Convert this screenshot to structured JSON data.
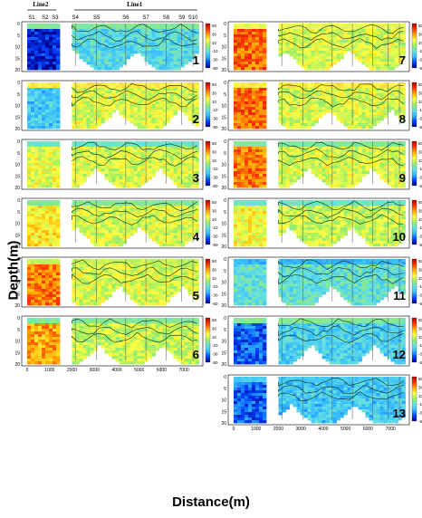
{
  "header": {
    "line1_label": "Line1",
    "line2_label": "Line2",
    "stations": [
      "S1",
      "S2",
      "S3",
      "S4",
      "S5",
      "S6",
      "S7",
      "S8",
      "S9",
      "S10"
    ]
  },
  "axes": {
    "ylabel": "Depth(m)",
    "xlabel": "Distance(m)",
    "y_ticks": [
      "0",
      "5",
      "10",
      "15",
      "20"
    ],
    "x_ticks_left": [
      "0",
      "1000"
    ],
    "x_ticks_right": [
      "2000",
      "3000",
      "4000",
      "5000",
      "6000",
      "7000"
    ],
    "colorbar_ticks": [
      "50",
      "30",
      "10",
      "-10",
      "-30",
      "-50"
    ]
  },
  "colors": {
    "scale": [
      "#00008b",
      "#0044ff",
      "#33bbff",
      "#66e0e0",
      "#99ee66",
      "#ffff44",
      "#ffaa00",
      "#ff3300",
      "#b00000"
    ]
  },
  "chart_data": {
    "type": "heatmap",
    "xlabel": "Distance(m)",
    "ylabel": "Depth(m)",
    "xlim": [
      0,
      7600
    ],
    "ylim": [
      20,
      0
    ],
    "colorbar_range": [
      -50,
      50
    ],
    "colorbar_ticks": [
      50,
      30,
      10,
      -10,
      -30,
      -50
    ],
    "station_labels": [
      "S1",
      "S2",
      "S3",
      "S4",
      "S5",
      "S6",
      "S7",
      "S8",
      "S9",
      "S10"
    ],
    "panels": [
      {
        "label": "1",
        "left_mean": -42,
        "right_mean": -15,
        "surface": -5
      },
      {
        "label": "2",
        "left_mean": -20,
        "right_mean": 8,
        "surface": 15
      },
      {
        "label": "3",
        "left_mean": 10,
        "right_mean": 8,
        "surface": -10
      },
      {
        "label": "4",
        "left_mean": 15,
        "right_mean": 8,
        "surface": -5
      },
      {
        "label": "5",
        "left_mean": 30,
        "right_mean": 8,
        "surface": 5
      },
      {
        "label": "6",
        "left_mean": 25,
        "right_mean": 6,
        "surface": -5
      },
      {
        "label": "7",
        "left_mean": 32,
        "right_mean": 8,
        "surface": 10
      },
      {
        "label": "8",
        "left_mean": 32,
        "right_mean": 8,
        "surface": 15
      },
      {
        "label": "9",
        "left_mean": 30,
        "right_mean": 8,
        "surface": -5
      },
      {
        "label": "10",
        "left_mean": 12,
        "right_mean": 6,
        "surface": -10
      },
      {
        "label": "11",
        "left_mean": -12,
        "right_mean": -12,
        "surface": -25
      },
      {
        "label": "12",
        "left_mean": -35,
        "right_mean": -18,
        "surface": -5
      },
      {
        "label": "13",
        "left_mean": -35,
        "right_mean": -20,
        "surface": -20
      }
    ]
  }
}
